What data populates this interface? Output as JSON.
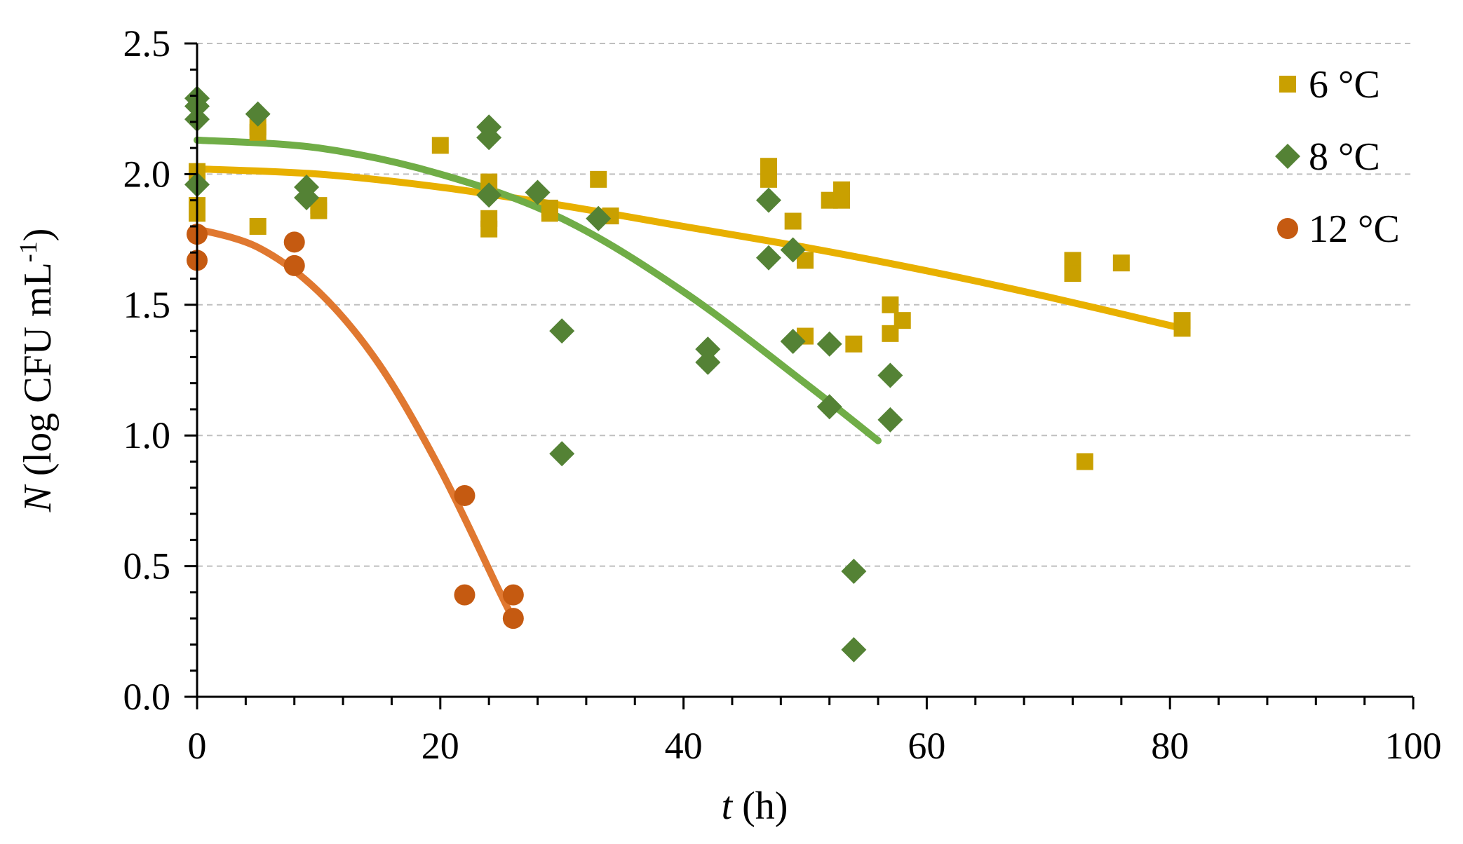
{
  "chart_data": {
    "type": "scatter",
    "title": "",
    "xlabel_var": "t",
    "xlabel_unit": "(h)",
    "ylabel_var": "N",
    "ylabel_unit": "(log CFU mL",
    "ylabel_exp": "-1",
    "ylabel_close": ")",
    "xlim": [
      0,
      100
    ],
    "ylim": [
      0,
      2.5
    ],
    "xticks": [
      0,
      20,
      40,
      60,
      80,
      100
    ],
    "xtick_labels": [
      "0",
      "20",
      "40",
      "60",
      "80",
      "100"
    ],
    "yticks": [
      0,
      0.5,
      1.0,
      1.5,
      2.0,
      2.5
    ],
    "ytick_labels": [
      "0.0",
      "0.5",
      "1.0",
      "1.5",
      "2.0",
      "2.5"
    ],
    "grid": "horizontal dashed",
    "legend_position": "top-right",
    "series": [
      {
        "name": "6 °C",
        "marker": "square",
        "color": "#C9A000",
        "fit_color": "#E8B000",
        "points": [
          [
            0,
            1.99
          ],
          [
            0,
            2.01
          ],
          [
            0,
            1.85
          ],
          [
            0,
            1.88
          ],
          [
            5,
            2.16
          ],
          [
            5,
            2.18
          ],
          [
            5,
            1.8
          ],
          [
            10,
            1.86
          ],
          [
            10,
            1.88
          ],
          [
            20,
            2.11
          ],
          [
            24,
            1.97
          ],
          [
            24,
            1.79
          ],
          [
            24,
            1.83
          ],
          [
            29,
            1.87
          ],
          [
            29,
            1.85
          ],
          [
            33,
            1.98
          ],
          [
            34,
            1.84
          ],
          [
            47,
            1.98
          ],
          [
            47,
            2.03
          ],
          [
            49,
            1.82
          ],
          [
            50,
            1.67
          ],
          [
            50,
            1.38
          ],
          [
            52,
            1.9
          ],
          [
            53,
            1.9
          ],
          [
            53,
            1.94
          ],
          [
            54,
            1.35
          ],
          [
            57,
            1.5
          ],
          [
            57,
            1.39
          ],
          [
            58,
            1.44
          ],
          [
            72,
            1.67
          ],
          [
            72,
            1.62
          ],
          [
            73,
            0.9
          ],
          [
            76,
            1.66
          ],
          [
            81,
            1.41
          ],
          [
            81,
            1.44
          ]
        ],
        "fit": [
          [
            0,
            2.02
          ],
          [
            10,
            2.0
          ],
          [
            20,
            1.95
          ],
          [
            30,
            1.88
          ],
          [
            40,
            1.8
          ],
          [
            50,
            1.72
          ],
          [
            60,
            1.63
          ],
          [
            70,
            1.53
          ],
          [
            81,
            1.41
          ]
        ]
      },
      {
        "name": "8 °C",
        "marker": "diamond",
        "color": "#548235",
        "fit_color": "#70AD47",
        "points": [
          [
            0,
            2.29
          ],
          [
            0,
            2.26
          ],
          [
            0,
            2.21
          ],
          [
            0,
            1.96
          ],
          [
            5,
            2.23
          ],
          [
            9,
            1.95
          ],
          [
            9,
            1.91
          ],
          [
            24,
            2.18
          ],
          [
            24,
            2.14
          ],
          [
            24,
            1.92
          ],
          [
            28,
            1.93
          ],
          [
            30,
            1.4
          ],
          [
            30,
            0.93
          ],
          [
            33,
            1.83
          ],
          [
            42,
            1.33
          ],
          [
            42,
            1.28
          ],
          [
            47,
            1.9
          ],
          [
            47,
            1.68
          ],
          [
            49,
            1.71
          ],
          [
            49,
            1.36
          ],
          [
            52,
            1.35
          ],
          [
            52,
            1.11
          ],
          [
            54,
            0.48
          ],
          [
            54,
            0.18
          ],
          [
            57,
            1.23
          ],
          [
            57,
            1.06
          ]
        ],
        "fit": [
          [
            0,
            2.13
          ],
          [
            10,
            2.1
          ],
          [
            20,
            2.0
          ],
          [
            30,
            1.83
          ],
          [
            40,
            1.55
          ],
          [
            50,
            1.2
          ],
          [
            56,
            0.98
          ]
        ]
      },
      {
        "name": "12 °C",
        "marker": "circle",
        "color": "#C55A11",
        "fit_color": "#E07830",
        "points": [
          [
            0,
            1.77
          ],
          [
            0,
            1.67
          ],
          [
            8,
            1.74
          ],
          [
            8,
            1.65
          ],
          [
            22,
            0.77
          ],
          [
            22,
            0.39
          ],
          [
            26,
            0.39
          ],
          [
            26,
            0.3
          ]
        ],
        "fit": [
          [
            0,
            1.79
          ],
          [
            5,
            1.72
          ],
          [
            10,
            1.55
          ],
          [
            15,
            1.27
          ],
          [
            20,
            0.87
          ],
          [
            25,
            0.39
          ],
          [
            26,
            0.3
          ]
        ]
      }
    ]
  }
}
